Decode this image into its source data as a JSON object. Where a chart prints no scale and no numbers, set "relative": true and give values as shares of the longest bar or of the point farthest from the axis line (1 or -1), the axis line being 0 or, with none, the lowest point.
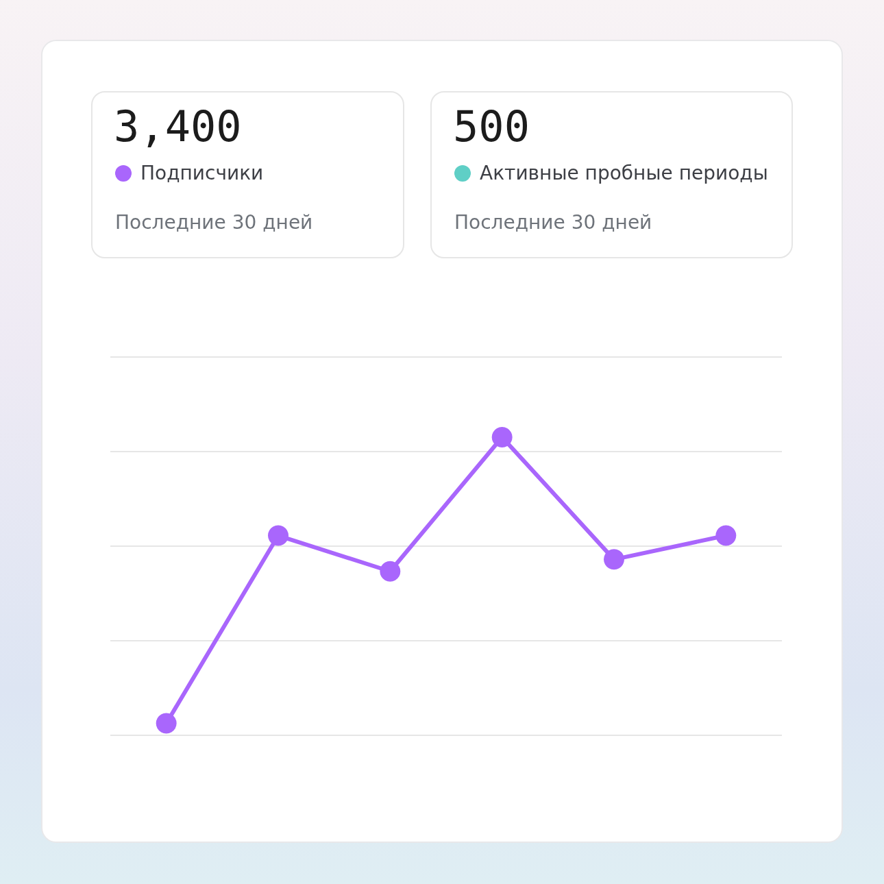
{
  "chart_data": [
    {
      "type": "other",
      "title": "3,400",
      "subtitle": "Подписчики",
      "color": "#a966fc",
      "annotations": [
        "Последние 30 дней"
      ]
    },
    {
      "type": "other",
      "title": "500",
      "subtitle": "Активные пробные периоды",
      "color": "#5fcfc6",
      "annotations": [
        "Последние 30 дней"
      ]
    },
    {
      "type": "line",
      "relative": true,
      "categories": [
        null,
        null,
        null,
        null,
        null,
        null
      ],
      "series": [
        {
          "color": "#a966fc",
          "values": [
            0.04,
            0.67,
            0.55,
            1,
            0.59,
            0.67
          ]
        }
      ],
      "grid": "y",
      "marker": "circle",
      "line_style": "solid"
    }
  ]
}
